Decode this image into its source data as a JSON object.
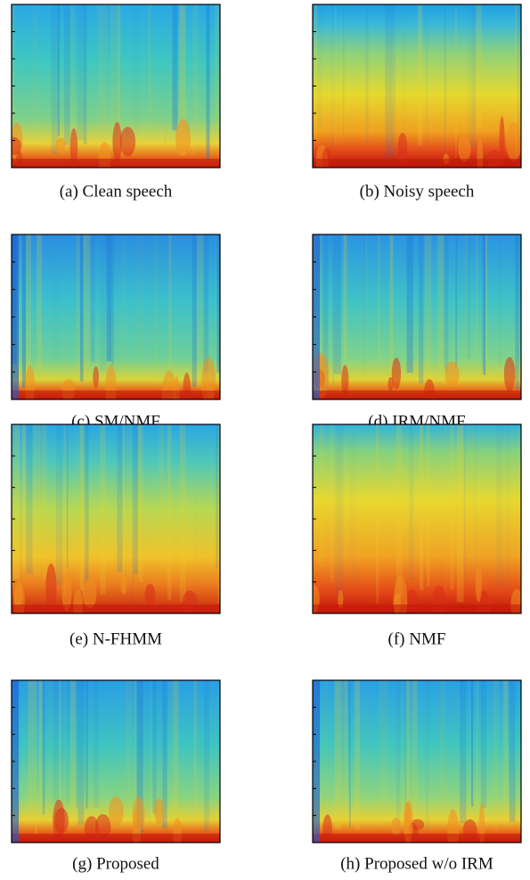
{
  "panels": [
    {
      "caption": "(a) Clean speech"
    },
    {
      "caption": "(b) Noisy speech"
    },
    {
      "caption": "(c) SM/NMF"
    },
    {
      "caption": "(d) IRM/NMF"
    },
    {
      "caption": "(e) N-FHMM"
    },
    {
      "caption": "(f) NMF"
    },
    {
      "caption": "(g) Proposed"
    },
    {
      "caption": "(h) Proposed w/o IRM"
    }
  ]
}
